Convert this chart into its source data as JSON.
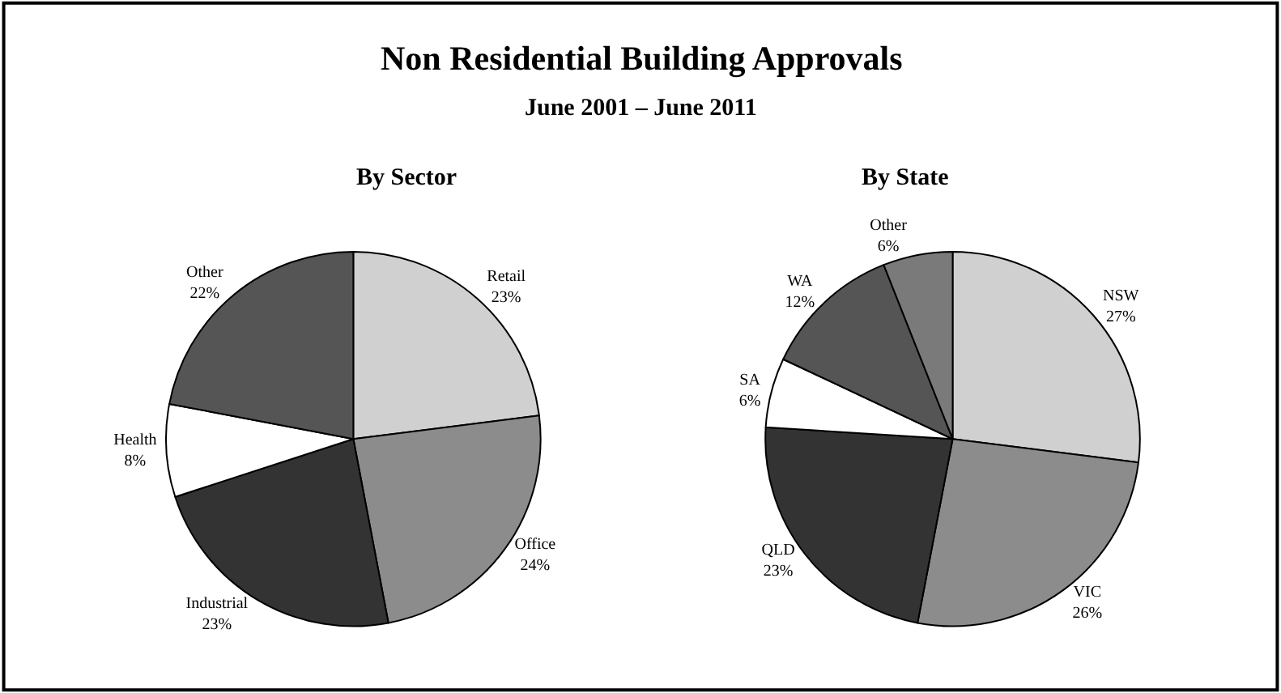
{
  "chart_data": [
    {
      "type": "other",
      "title": "Non Residential Building Approvals",
      "subtitle": "June 2001 – June 2011"
    },
    {
      "type": "pie",
      "title": "By Sector",
      "categories": [
        "Retail",
        "Office",
        "Industrial",
        "Health",
        "Other"
      ],
      "values": [
        23,
        24,
        23,
        8,
        22
      ],
      "value_labels": [
        "23%",
        "24%",
        "23%",
        "8%",
        "22%"
      ],
      "colors": [
        "#d0d0d0",
        "#8c8c8c",
        "#333333",
        "#ffffff",
        "#555555"
      ]
    },
    {
      "type": "pie",
      "title": "By State",
      "categories": [
        "NSW",
        "VIC",
        "QLD",
        "SA",
        "WA",
        "Other"
      ],
      "values": [
        27,
        26,
        23,
        6,
        12,
        6
      ],
      "value_labels": [
        "27%",
        "26%",
        "23%",
        "6%",
        "12%",
        "6%"
      ],
      "colors": [
        "#d0d0d0",
        "#8c8c8c",
        "#333333",
        "#ffffff",
        "#555555",
        "#7a7a7a"
      ]
    }
  ]
}
